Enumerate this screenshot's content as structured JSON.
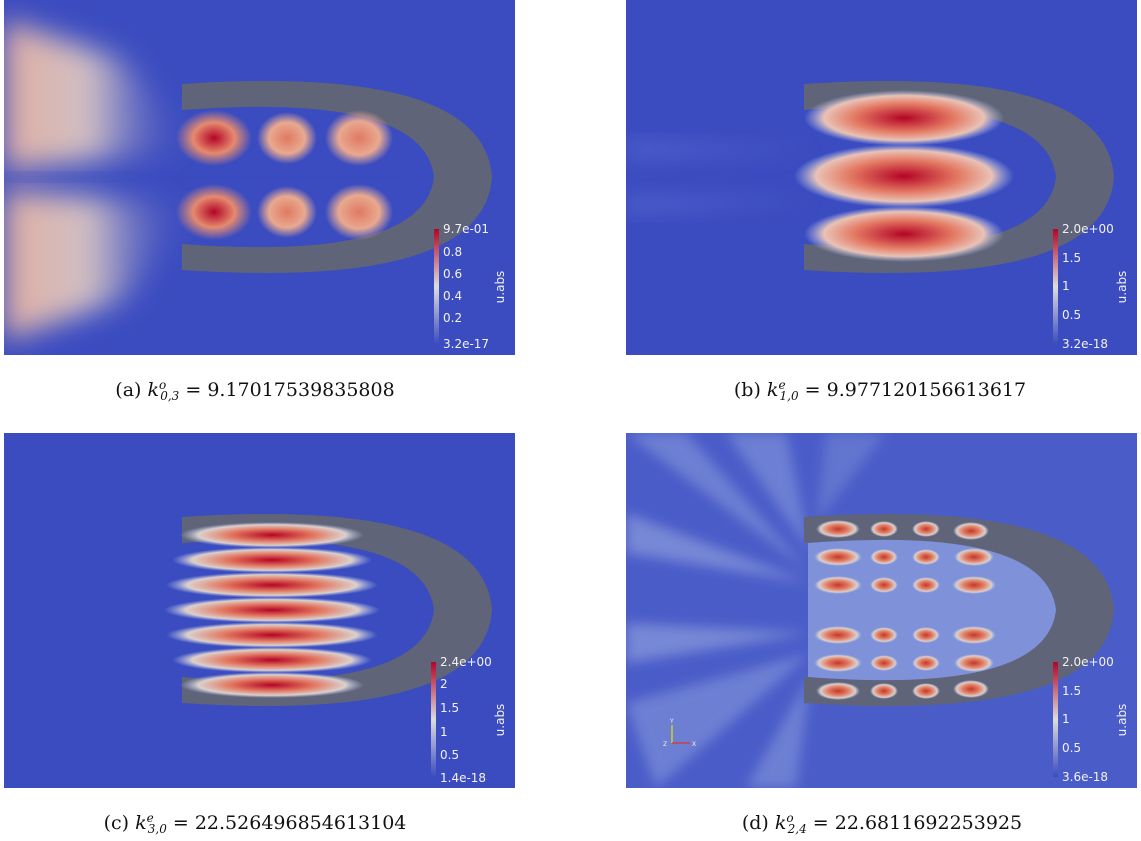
{
  "panels": [
    {
      "id": "a",
      "caption": {
        "label": "(a)",
        "k_sup": "o",
        "k_sub": "0,3",
        "value": "9.17017539835808"
      },
      "colorbar": {
        "title": "u.abs",
        "ticks": [
          "9.7e-01",
          "0.8",
          "0.6",
          "0.4",
          "0.2",
          "3.2e-17"
        ]
      },
      "axes_triad": false
    },
    {
      "id": "b",
      "caption": {
        "label": "(b)",
        "k_sup": "e",
        "k_sub": "1,0",
        "value": "9.977120156613617"
      },
      "colorbar": {
        "title": "u.abs",
        "ticks": [
          "2.0e+00",
          "1.5",
          "1",
          "0.5",
          "3.2e-18"
        ]
      },
      "axes_triad": false
    },
    {
      "id": "c",
      "caption": {
        "label": "(c)",
        "k_sup": "e",
        "k_sub": "3,0",
        "value": "22.526496854613104"
      },
      "colorbar": {
        "title": "u.abs",
        "ticks": [
          "2.4e+00",
          "2",
          "1.5",
          "1",
          "0.5",
          "1.4e-18"
        ]
      },
      "axes_triad": false
    },
    {
      "id": "d",
      "caption": {
        "label": "(d)",
        "k_sup": "o",
        "k_sub": "2,4",
        "value": "22.6811692253925"
      },
      "colorbar": {
        "title": "u.abs",
        "ticks": [
          "2.0e+00",
          "1.5",
          "1",
          "0.5",
          "3.6e-18"
        ]
      },
      "axes_triad": true,
      "triad_labels": [
        "Y",
        "Z",
        "X"
      ]
    }
  ],
  "colors": {
    "background_field": "#3b4cc0",
    "wall": "#5f6478",
    "hot": "#b40426",
    "warm": "#e0786a",
    "neutral": "#dddddd"
  }
}
